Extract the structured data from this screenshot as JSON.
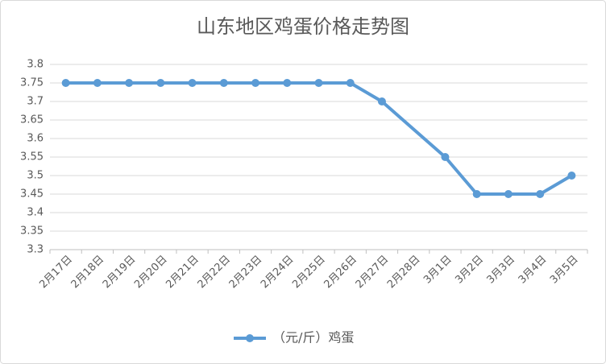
{
  "chart_data": {
    "type": "line",
    "title": "山东地区鸡蛋价格走势图",
    "categories": [
      "2月17日",
      "2月18日",
      "2月19日",
      "2月20日",
      "2月21日",
      "2月22日",
      "2月23日",
      "2月24日",
      "2月25日",
      "2月26日",
      "2月27日",
      "2月28日",
      "3月1日",
      "3月2日",
      "3月3日",
      "3月4日",
      "3月5日"
    ],
    "series": [
      {
        "name": "（元/斤）鸡蛋",
        "color": "#5b9bd5",
        "values": [
          3.75,
          3.75,
          3.75,
          3.75,
          3.75,
          3.75,
          3.75,
          3.75,
          3.75,
          3.75,
          3.7,
          null,
          3.55,
          3.45,
          3.45,
          3.45,
          3.5
        ]
      }
    ],
    "ylim": [
      3.3,
      3.8
    ],
    "yticks": [
      3.3,
      3.35,
      3.4,
      3.45,
      3.5,
      3.55,
      3.6,
      3.65,
      3.7,
      3.75,
      3.8
    ],
    "grid": true,
    "legend": "bottom"
  }
}
